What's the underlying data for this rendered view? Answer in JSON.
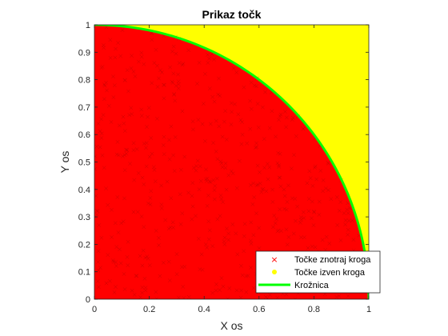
{
  "chart_data": {
    "type": "scatter",
    "title": "Prikaz točk",
    "xlabel": "X os",
    "ylabel": "Y os",
    "xlim": [
      0,
      1
    ],
    "ylim": [
      0,
      1
    ],
    "xticks": [
      "0",
      "0.2",
      "0.4",
      "0.6",
      "0.8",
      "1"
    ],
    "yticks": [
      "0",
      "0.1",
      "0.2",
      "0.3",
      "0.4",
      "0.5",
      "0.6",
      "0.7",
      "0.8",
      "0.9",
      "1"
    ],
    "grid": false,
    "legend_position": "bottom-right",
    "series": [
      {
        "name": "Točke znotraj kroga",
        "marker": "x",
        "color": "#ff0000",
        "region": "x^2 + y^2 <= 1"
      },
      {
        "name": "Točke izven kroga",
        "marker": "filled-circle",
        "color": "#ffff00",
        "region": "x^2 + y^2 > 1"
      },
      {
        "name": "Krožnica",
        "marker": "line",
        "color": "#00ff00",
        "curve": "x^2 + y^2 = 1"
      }
    ]
  }
}
